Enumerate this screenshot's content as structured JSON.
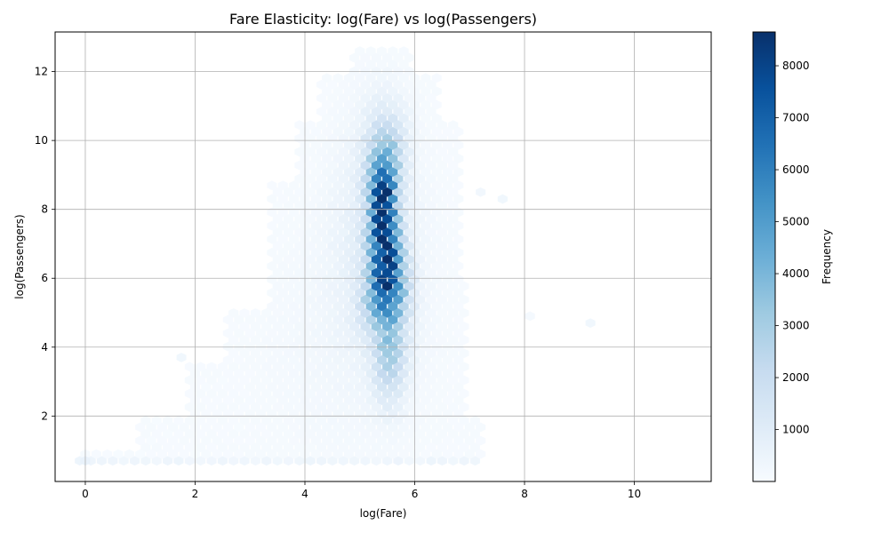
{
  "chart_data": {
    "type": "heatmap",
    "subtype": "hexbin",
    "title": "Fare Elasticity: log(Fare) vs log(Passengers)",
    "xlabel": "log(Fare)",
    "ylabel": "log(Passengers)",
    "xlim": [
      -0.55,
      11.4
    ],
    "ylim": [
      0.1,
      13.15
    ],
    "xticks": [
      0,
      2,
      4,
      6,
      8,
      10
    ],
    "yticks": [
      2,
      4,
      6,
      8,
      10,
      12
    ],
    "grid": true,
    "colormap": "Blues",
    "colors": {
      "low": "#f7fbff",
      "mid": "#6baed6",
      "high": "#08306b",
      "grid": "#b0b0b0"
    },
    "colorbar": {
      "label": "Frequency",
      "range": [
        1,
        8650
      ],
      "ticks": [
        1000,
        2000,
        3000,
        4000,
        5000,
        6000,
        7000,
        8000
      ]
    },
    "hex_grid": {
      "x_step": 0.2,
      "y_step": 0.195
    },
    "density_peaks": [
      {
        "x": 5.4,
        "y": 8.8,
        "count": 8650
      },
      {
        "x": 5.5,
        "y": 7.9,
        "count": 8200
      },
      {
        "x": 5.45,
        "y": 7.1,
        "count": 7800
      },
      {
        "x": 5.55,
        "y": 6.0,
        "count": 6200
      },
      {
        "x": 5.6,
        "y": 4.8,
        "count": 3500
      }
    ],
    "outliers": [
      {
        "x": 0.0,
        "y": 0.7,
        "count": 600
      },
      {
        "x": 1.75,
        "y": 3.7,
        "count": 300
      },
      {
        "x": 7.6,
        "y": 8.3,
        "count": 300
      },
      {
        "x": 8.1,
        "y": 4.9,
        "count": 150
      },
      {
        "x": 9.2,
        "y": 4.7,
        "count": 300
      },
      {
        "x": 7.2,
        "y": 8.5,
        "count": 250
      }
    ]
  }
}
